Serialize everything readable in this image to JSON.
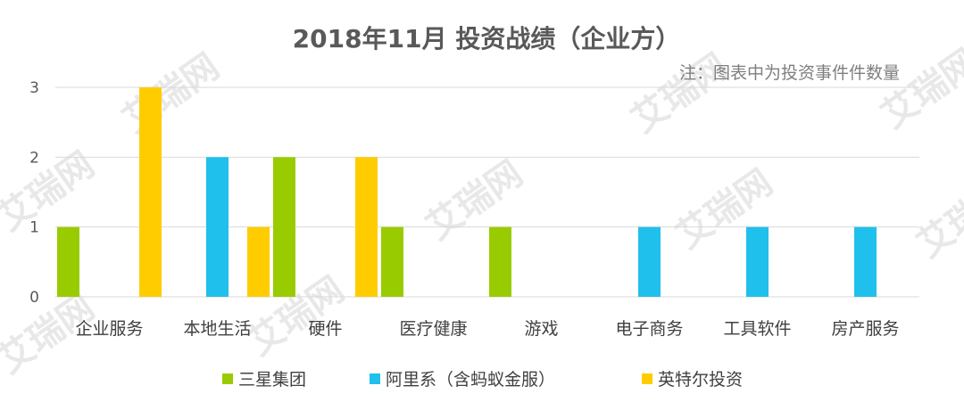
{
  "chart_data": {
    "type": "bar",
    "title": "2018年11月 投资战绩（企业方）",
    "note": "注：图表中为投资事件件数量",
    "categories": [
      "企业服务",
      "本地生活",
      "硬件",
      "医疗健康",
      "游戏",
      "电子商务",
      "工具软件",
      "房产服务"
    ],
    "series": [
      {
        "name": "三星集团",
        "color": "#99cc00",
        "values": [
          1,
          0,
          2,
          1,
          1,
          0,
          0,
          0
        ]
      },
      {
        "name": "阿里系（含蚂蚁金服）",
        "color": "#1fc0ec",
        "values": [
          0,
          2,
          0,
          0,
          0,
          1,
          1,
          1
        ]
      },
      {
        "name": "英特尔投资",
        "color": "#ffcc00",
        "values": [
          3,
          1,
          2,
          0,
          0,
          0,
          0,
          0
        ]
      }
    ],
    "ylim": [
      0,
      3
    ],
    "yticks": [
      0,
      1,
      2,
      3
    ],
    "grid": true,
    "legend_position": "bottom",
    "xlabel": "",
    "ylabel": ""
  },
  "watermark": {
    "text": "艾瑞网"
  }
}
